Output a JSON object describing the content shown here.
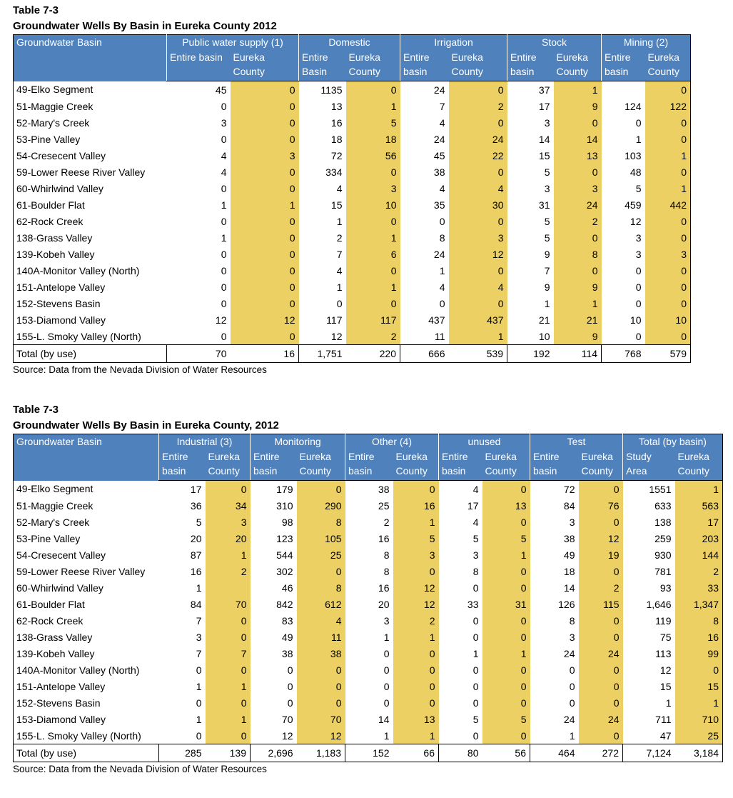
{
  "tables": [
    {
      "label": "Table 7-3",
      "title": "Groundwater Wells By Basin in Eureka County 2012",
      "basin_header": "Groundwater Basin",
      "groups": [
        {
          "name": "Public water supply (1)",
          "sub": [
            "Entire basin",
            "Eureka County"
          ]
        },
        {
          "name": "Domestic",
          "sub": [
            "Entire Basin",
            "Eureka County"
          ]
        },
        {
          "name": "Irrigation",
          "sub": [
            "Entire basin",
            "Eureka County"
          ]
        },
        {
          "name": "Stock",
          "sub": [
            "Entire basin",
            "Eureka County"
          ]
        },
        {
          "name": "Mining (2)",
          "sub": [
            "Entire basin",
            "Eureka County"
          ]
        }
      ],
      "rows": [
        {
          "basin": "49-Elko Segment",
          "cells": [
            "45",
            "0",
            "1135",
            "0",
            "24",
            "0",
            "37",
            "1",
            null,
            "0"
          ]
        },
        {
          "basin": "51-Maggie Creek",
          "cells": [
            "0",
            "0",
            "13",
            "1",
            "7",
            "2",
            "17",
            "9",
            "124",
            "122"
          ]
        },
        {
          "basin": "52-Mary's Creek",
          "cells": [
            "3",
            "0",
            "16",
            "5",
            "4",
            "0",
            "3",
            "0",
            "0",
            "0"
          ]
        },
        {
          "basin": "53-Pine Valley",
          "cells": [
            "0",
            "0",
            "18",
            "18",
            "24",
            "24",
            "14",
            "14",
            "1",
            "0"
          ]
        },
        {
          "basin": "54-Cresecent Valley",
          "cells": [
            "4",
            "3",
            "72",
            "56",
            "45",
            "22",
            "15",
            "13",
            "103",
            "1"
          ]
        },
        {
          "basin": "59-Lower Reese River Valley",
          "cells": [
            "4",
            "0",
            "334",
            "0",
            "38",
            "0",
            "5",
            "0",
            "48",
            "0"
          ]
        },
        {
          "basin": "60-Whirlwind Valley",
          "cells": [
            "0",
            "0",
            "4",
            "3",
            "4",
            "4",
            "3",
            "3",
            "5",
            "1"
          ]
        },
        {
          "basin": "61-Boulder Flat",
          "cells": [
            "1",
            "1",
            "15",
            "10",
            "35",
            "30",
            "31",
            "24",
            "459",
            "442"
          ]
        },
        {
          "basin": "62-Rock Creek",
          "cells": [
            "0",
            "0",
            "1",
            "0",
            "0",
            "0",
            "5",
            "2",
            "12",
            "0"
          ]
        },
        {
          "basin": "138-Grass Valley",
          "cells": [
            "1",
            "0",
            "2",
            "1",
            "8",
            "3",
            "5",
            "0",
            "3",
            "0"
          ]
        },
        {
          "basin": "139-Kobeh Valley",
          "cells": [
            "0",
            "0",
            "7",
            "6",
            "24",
            "12",
            "9",
            "8",
            "3",
            "3"
          ]
        },
        {
          "basin": "140A-Monitor Valley (North)",
          "cells": [
            "0",
            "0",
            "4",
            "0",
            "1",
            "0",
            "7",
            "0",
            "0",
            "0"
          ]
        },
        {
          "basin": "151-Antelope Valley",
          "cells": [
            "0",
            "0",
            "1",
            "1",
            "4",
            "4",
            "9",
            "9",
            "0",
            "0"
          ]
        },
        {
          "basin": "152-Stevens Basin",
          "cells": [
            "0",
            "0",
            "0",
            "0",
            "0",
            "0",
            "1",
            "1",
            "0",
            "0"
          ]
        },
        {
          "basin": "153-Diamond Valley",
          "cells": [
            "12",
            "12",
            "117",
            "117",
            "437",
            "437",
            "21",
            "21",
            "10",
            "10"
          ]
        },
        {
          "basin": "155-L. Smoky Valley (North)",
          "cells": [
            "0",
            "0",
            "12",
            "2",
            "11",
            "1",
            "10",
            "9",
            "0",
            "0"
          ]
        }
      ],
      "total": {
        "label": "Total (by use)",
        "cells": [
          "70",
          "16",
          "1,751",
          "220",
          "666",
          "539",
          "192",
          "114",
          "768",
          "579"
        ]
      },
      "source": "Source: Data from the Nevada Division of Water Resources"
    },
    {
      "label": "Table 7-3",
      "title": "Groundwater Wells By Basin in Eureka County, 2012",
      "basin_header": "Groundwater Basin",
      "groups": [
        {
          "name": "Industrial (3)",
          "sub": [
            "Entire basin",
            "Eureka County"
          ]
        },
        {
          "name": "Monitoring",
          "sub": [
            "Entire basin",
            "Eureka County"
          ]
        },
        {
          "name": "Other (4)",
          "sub": [
            "Entire basin",
            "Eureka County"
          ]
        },
        {
          "name": "unused",
          "sub": [
            "Entire basin",
            "Eureka County"
          ]
        },
        {
          "name": "Test",
          "sub": [
            "Entire basin",
            "Eureka County"
          ]
        },
        {
          "name": "Total (by basin)",
          "sub": [
            "Study Area",
            "Eureka County"
          ]
        }
      ],
      "rows": [
        {
          "basin": "49-Elko Segment",
          "cells": [
            "17",
            "0",
            "179",
            "0",
            "38",
            "0",
            "4",
            "0",
            "72",
            "0",
            "1551",
            "1"
          ]
        },
        {
          "basin": "51-Maggie Creek",
          "cells": [
            "36",
            "34",
            "310",
            "290",
            "25",
            "16",
            "17",
            "13",
            "84",
            "76",
            "633",
            "563"
          ]
        },
        {
          "basin": "52-Mary's Creek",
          "cells": [
            "5",
            "3",
            "98",
            "8",
            "2",
            "1",
            "4",
            "0",
            "3",
            "0",
            "138",
            "17"
          ]
        },
        {
          "basin": "53-Pine Valley",
          "cells": [
            "20",
            "20",
            "123",
            "105",
            "16",
            "5",
            "5",
            "5",
            "38",
            "12",
            "259",
            "203"
          ]
        },
        {
          "basin": "54-Cresecent Valley",
          "cells": [
            "87",
            "1",
            "544",
            "25",
            "8",
            "3",
            "3",
            "1",
            "49",
            "19",
            "930",
            "144"
          ]
        },
        {
          "basin": "59-Lower Reese River Valley",
          "cells": [
            "16",
            "2",
            "302",
            "0",
            "8",
            "0",
            "8",
            "0",
            "18",
            "0",
            "781",
            "2"
          ]
        },
        {
          "basin": "60-Whirlwind Valley",
          "cells": [
            "1",
            null,
            "46",
            "8",
            "16",
            "12",
            "0",
            "0",
            "14",
            "2",
            "93",
            "33"
          ]
        },
        {
          "basin": "61-Boulder Flat",
          "cells": [
            "84",
            "70",
            "842",
            "612",
            "20",
            "12",
            "33",
            "31",
            "126",
            "115",
            "1,646",
            "1,347"
          ]
        },
        {
          "basin": "62-Rock Creek",
          "cells": [
            "7",
            "0",
            "83",
            "4",
            "3",
            "2",
            "0",
            "0",
            "8",
            "0",
            "119",
            "8"
          ]
        },
        {
          "basin": "138-Grass Valley",
          "cells": [
            "3",
            "0",
            "49",
            "11",
            "1",
            "1",
            "0",
            "0",
            "3",
            "0",
            "75",
            "16"
          ]
        },
        {
          "basin": "139-Kobeh Valley",
          "cells": [
            "7",
            "7",
            "38",
            "38",
            "0",
            "0",
            "1",
            "1",
            "24",
            "24",
            "113",
            "99"
          ]
        },
        {
          "basin": "140A-Monitor Valley (North)",
          "cells": [
            "0",
            "0",
            "0",
            "0",
            "0",
            "0",
            "0",
            "0",
            "0",
            "0",
            "12",
            "0"
          ]
        },
        {
          "basin": "151-Antelope Valley",
          "cells": [
            "1",
            "1",
            "0",
            "0",
            "0",
            "0",
            "0",
            "0",
            "0",
            "0",
            "15",
            "15"
          ]
        },
        {
          "basin": "152-Stevens Basin",
          "cells": [
            "0",
            "0",
            "0",
            "0",
            "0",
            "0",
            "0",
            "0",
            "0",
            "0",
            "1",
            "1"
          ]
        },
        {
          "basin": "153-Diamond Valley",
          "cells": [
            "1",
            "1",
            "70",
            "70",
            "14",
            "13",
            "5",
            "5",
            "24",
            "24",
            "711",
            "710"
          ]
        },
        {
          "basin": "155-L. Smoky Valley (North)",
          "cells": [
            "0",
            "0",
            "12",
            "12",
            "1",
            "1",
            "0",
            "0",
            "1",
            "0",
            "47",
            "25"
          ]
        }
      ],
      "total": {
        "label": "Total (by use)",
        "cells": [
          "285",
          "139",
          "2,696",
          "1,183",
          "152",
          "66",
          "80",
          "56",
          "464",
          "272",
          "7,124",
          "3,184"
        ]
      },
      "source": "Source: Data from the Nevada Division of Water Resources"
    }
  ]
}
